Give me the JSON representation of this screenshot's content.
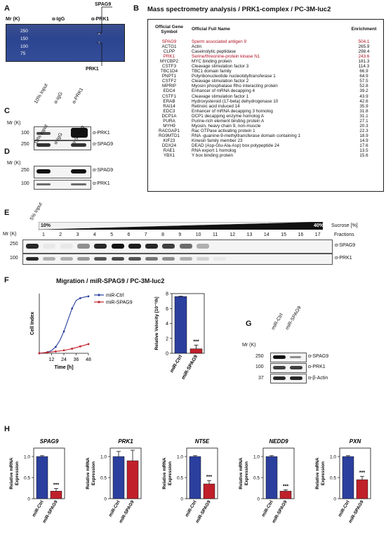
{
  "panels": {
    "A": "A",
    "B": "B",
    "C": "C",
    "D": "D",
    "E": "E",
    "F": "F",
    "G": "G",
    "H": "H"
  },
  "panelA": {
    "mr_label": "Mr (K)",
    "lanes": [
      "α-IgG",
      "α-PRK1"
    ],
    "markers": [
      "250",
      "150",
      "100",
      "75"
    ],
    "callouts": {
      "spag9": "SPAG9",
      "prk1": "PRK1"
    },
    "star": "*"
  },
  "panelB": {
    "title": "Mass spectrometry analysis / PRK1-complex / PC-3M-luc2",
    "headers": [
      "Official Gene Symbol",
      "Official  Full Name",
      "Enrichment"
    ],
    "rows": [
      {
        "symbol": "SPAG9",
        "name": "Sperm associated antigen 9",
        "value": "504.1",
        "highlight": true
      },
      {
        "symbol": "ACTG1",
        "name": "Actin",
        "value": "265.9",
        "highlight": false
      },
      {
        "symbol": "CLPP",
        "name": "Caseinolytic peptidase",
        "value": "298.4",
        "highlight": false
      },
      {
        "symbol": "PRK1",
        "name": "Serine/threonine-protein kinase N1",
        "value": "243.6",
        "highlight": true
      },
      {
        "symbol": "MYCBP2",
        "name": "MYC binding protein",
        "value": "181.3",
        "highlight": false
      },
      {
        "symbol": "CSTF3",
        "name": "Cleavage stimulation factor 3",
        "value": "114.3",
        "highlight": false
      },
      {
        "symbol": "TBC1D4",
        "name": "TBC1 domain family",
        "value": "66.9",
        "highlight": false
      },
      {
        "symbol": "PNPT1",
        "name": "Polyribonucleotide nucleotidyltransferase 1",
        "value": "64.9",
        "highlight": false
      },
      {
        "symbol": "CSTF2",
        "name": "Cleavage stimulation factor 2",
        "value": "57.5",
        "highlight": false
      },
      {
        "symbol": "MPRIP",
        "name": "Myosin phosphatase Rho interacting protein",
        "value": "52.8",
        "highlight": false
      },
      {
        "symbol": "EDC4",
        "name": "Enhancer of mRNA decapping 4",
        "value": "39.2",
        "highlight": false
      },
      {
        "symbol": "CSTF1",
        "name": "Cleavage stimulation factor 1",
        "value": "43.9",
        "highlight": false
      },
      {
        "symbol": "ERAB",
        "name": "Hydroxysteroid (17-beta) dehydrogenase 10",
        "value": "42.6",
        "highlight": false
      },
      {
        "symbol": "RAI14",
        "name": "Retinoic acid induced 14",
        "value": "35.9",
        "highlight": false
      },
      {
        "symbol": "EDC3",
        "name": "Enhancer of mRNA decapping 3 homolog",
        "value": "31.8",
        "highlight": false
      },
      {
        "symbol": "DCP1A",
        "name": "DCP1 decapping enzyme homolog A",
        "value": "31.1",
        "highlight": false
      },
      {
        "symbol": "PURA",
        "name": "Purine-rich element binding protein A",
        "value": "27.1",
        "highlight": false
      },
      {
        "symbol": "MYH9",
        "name": "Myosin, heavy chain 9, non-muscle",
        "value": "20.3",
        "highlight": false
      },
      {
        "symbol": "RACGAP1",
        "name": "Rac GTPase activating protein 1",
        "value": "22.3",
        "highlight": false
      },
      {
        "symbol": "RG9MTD1",
        "name": "RNA -guanine-9-methyltransferase domain containing 1",
        "value": "18.9",
        "highlight": false
      },
      {
        "symbol": "KIF23",
        "name": "Kinesin family member 23",
        "value": "14.9",
        "highlight": false
      },
      {
        "symbol": "DDX24",
        "name": "DEAD (Asp-Glu-Ala-Asp) box polypeptide 24",
        "value": "17.6",
        "highlight": false
      },
      {
        "symbol": "RAE1",
        "name": "RNA export 1 homolog",
        "value": "13.5",
        "highlight": false
      },
      {
        "symbol": "YBX1",
        "name": "Y box binding protein",
        "value": "15.6",
        "highlight": false
      }
    ]
  },
  "panelC": {
    "mr_label": "Mr (K)",
    "lanes": [
      "10% Input",
      "α-IgG",
      "α-PRK1"
    ],
    "markers": [
      "100",
      "250"
    ],
    "antibodies": [
      "α-PRK1",
      "α-SPAG9"
    ]
  },
  "panelD": {
    "mr_label": "Mr (K)",
    "lanes": [
      "10% Input",
      "α-IgG",
      "α-SPAG9"
    ],
    "markers": [
      "250",
      "100"
    ],
    "antibodies": [
      "α-SPAG9",
      "α-PRK1"
    ]
  },
  "panelE": {
    "mr_label": "Mr (K)",
    "input_label": "5% Input",
    "gradient_start": "10%",
    "gradient_end": "40%",
    "sucrose_label": "Sucrose [%]",
    "fractions_label": "Fractions",
    "fractions": [
      "1",
      "2",
      "3",
      "4",
      "5",
      "6",
      "7",
      "8",
      "9",
      "10",
      "11",
      "12",
      "13",
      "14",
      "15",
      "16",
      "17"
    ],
    "markers": [
      "250",
      "100"
    ],
    "antibodies": [
      "α-SPAG9",
      "α-PRK1"
    ]
  },
  "panelF": {
    "title": "Migration / miR-SPAG9 / PC-3M-luc2",
    "chart_data": [
      {
        "type": "line",
        "ylabel": "Cell Index",
        "xlabel": "Time [h]",
        "x": [
          0,
          4,
          8,
          12,
          16,
          20,
          24,
          28,
          32,
          36,
          40,
          44,
          48
        ],
        "xticks": [
          "12",
          "24",
          "36",
          "48"
        ],
        "series": [
          {
            "name": "miR-Ctrl",
            "color": "#2b3f9e",
            "values": [
              0.0,
              0.02,
              0.05,
              0.12,
              0.28,
              0.55,
              0.95,
              1.45,
              1.95,
              2.3,
              2.4,
              2.45,
              2.48
            ]
          },
          {
            "name": "miR-SPAG9",
            "color": "#c0202a",
            "values": [
              0.0,
              0.02,
              0.04,
              0.06,
              0.08,
              0.1,
              0.13,
              0.16,
              0.2,
              0.25,
              0.3,
              0.35,
              0.4
            ]
          }
        ],
        "ylim": [
          0,
          2.6
        ]
      },
      {
        "type": "bar",
        "ylabel": "Relative Velocity [10⁻²/h]",
        "categories": [
          "miR-Ctrl",
          "miR-SPAG9"
        ],
        "values": [
          7.6,
          0.6
        ],
        "errors": [
          0.05,
          0.5
        ],
        "colors": [
          "#2b3f9e",
          "#c0202a"
        ],
        "yticks": [
          "0",
          "2",
          "4",
          "6",
          "8"
        ],
        "ylim": [
          0,
          8
        ],
        "significance": "***"
      }
    ]
  },
  "panelG": {
    "mr_label": "Mr (K)",
    "lanes": [
      "miR-Ctrl",
      "miR-SPAG9"
    ],
    "markers": [
      "250",
      "100",
      "37"
    ],
    "antibodies": [
      "α-SPAG9",
      "α-PRK1",
      "α-β-Actin"
    ]
  },
  "panelH": {
    "ylabel": "Relative mRNA Expression",
    "categories": [
      "miR-Ctrl",
      "miR-SPAG9"
    ],
    "colors": [
      "#2b3f9e",
      "#c0202a"
    ],
    "yticks": [
      "0",
      "0.5",
      "1.0"
    ],
    "chart_data": [
      {
        "type": "bar",
        "title": "SPAG9",
        "values": [
          1.0,
          0.18
        ],
        "errors": [
          0.02,
          0.06
        ],
        "significance": "***"
      },
      {
        "type": "bar",
        "title": "PRK1",
        "values": [
          1.0,
          0.9
        ],
        "errors": [
          0.12,
          0.25
        ],
        "significance": ""
      },
      {
        "type": "bar",
        "title": "NT5E",
        "values": [
          1.0,
          0.35
        ],
        "errors": [
          0.02,
          0.08
        ],
        "significance": "***"
      },
      {
        "type": "bar",
        "title": "NEDD9",
        "values": [
          1.0,
          0.18
        ],
        "errors": [
          0.02,
          0.03
        ],
        "significance": "***"
      },
      {
        "type": "bar",
        "title": "PXN",
        "values": [
          1.0,
          0.45
        ],
        "errors": [
          0.02,
          0.08
        ],
        "significance": "***"
      }
    ]
  }
}
